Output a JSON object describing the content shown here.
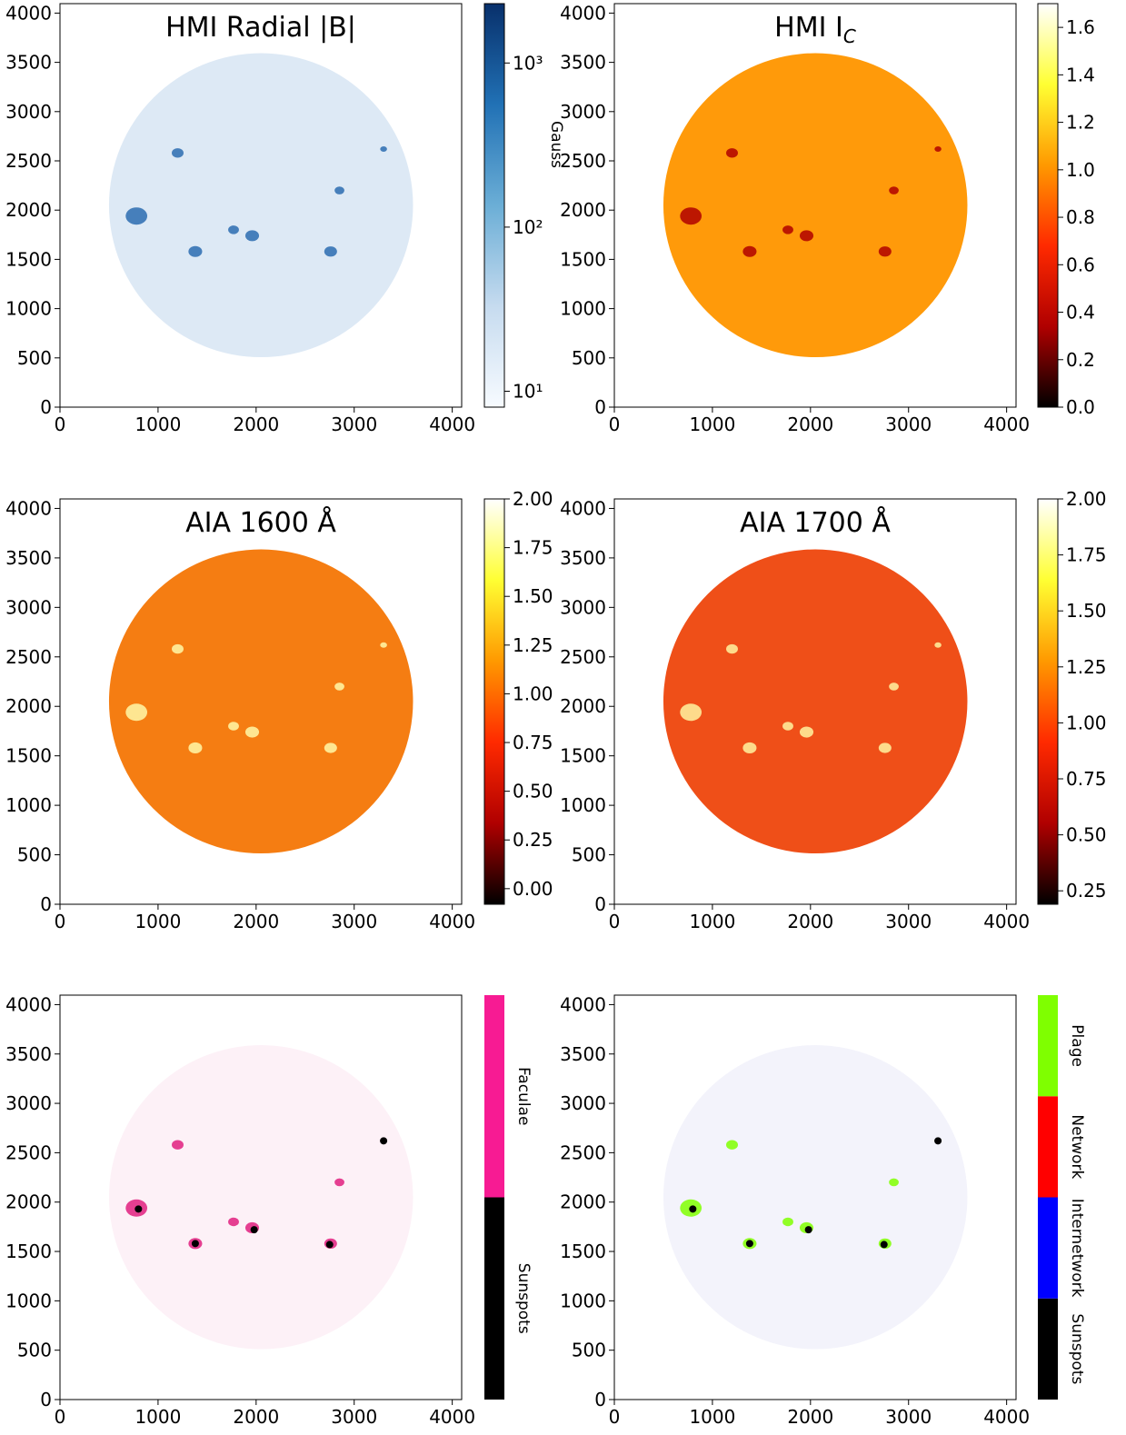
{
  "chart_data": [
    {
      "type": "image",
      "title": "HMI Radial |B|",
      "color": "#dde9f5",
      "xlim": [
        0,
        4096
      ],
      "ylim": [
        0,
        4096
      ],
      "xticks": [
        0,
        1000,
        2000,
        3000,
        4000
      ],
      "yticks": [
        0,
        500,
        1000,
        1500,
        2000,
        2500,
        3000,
        3500,
        4000
      ],
      "colorbar": {
        "label": "Gauss",
        "colormap": "Blues",
        "log": true,
        "lim": [
          8,
          2300
        ],
        "ticks": [
          {
            "value": 10,
            "label": "10¹"
          },
          {
            "value": 100,
            "label": "10²"
          },
          {
            "value": 1000,
            "label": "10³"
          }
        ]
      }
    },
    {
      "type": "image",
      "title": "HMI I",
      "title_subscript": "C",
      "color": "#ff9a0a",
      "xlim": [
        0,
        4096
      ],
      "ylim": [
        0,
        4096
      ],
      "xticks": [
        0,
        1000,
        2000,
        3000,
        4000
      ],
      "yticks": [
        0,
        500,
        1000,
        1500,
        2000,
        2500,
        3000,
        3500,
        4000
      ],
      "colorbar": {
        "colormap": "hot",
        "log": false,
        "lim": [
          0,
          1.7
        ],
        "ticks": [
          {
            "value": 0,
            "label": "0.0"
          },
          0.2,
          0.4,
          0.6,
          0.8,
          {
            "value": 1,
            "label": "1.0"
          },
          1.2,
          1.4,
          1.6
        ]
      }
    },
    {
      "type": "image",
      "title": "AIA 1600 Å",
      "color": "#f57d12",
      "xlim": [
        0,
        4096
      ],
      "ylim": [
        0,
        4096
      ],
      "xticks": [
        0,
        1000,
        2000,
        3000,
        4000
      ],
      "yticks": [
        0,
        500,
        1000,
        1500,
        2000,
        2500,
        3000,
        3500,
        4000
      ],
      "colorbar": {
        "colormap": "hot",
        "log": false,
        "lim": [
          -0.08,
          2.0
        ],
        "ticks": [
          {
            "value": 0,
            "label": "0.00"
          },
          {
            "value": 0.25,
            "label": "0.25"
          },
          {
            "value": 0.5,
            "label": "0.50"
          },
          {
            "value": 0.75,
            "label": "0.75"
          },
          {
            "value": 1,
            "label": "1.00"
          },
          {
            "value": 1.25,
            "label": "1.25"
          },
          {
            "value": 1.5,
            "label": "1.50"
          },
          {
            "value": 1.75,
            "label": "1.75"
          },
          {
            "value": 2,
            "label": "2.00"
          }
        ]
      }
    },
    {
      "type": "image",
      "title": "AIA 1700 Å",
      "color": "#ef4f18",
      "xlim": [
        0,
        4096
      ],
      "ylim": [
        0,
        4096
      ],
      "xticks": [
        0,
        1000,
        2000,
        3000,
        4000
      ],
      "yticks": [
        0,
        500,
        1000,
        1500,
        2000,
        2500,
        3000,
        3500,
        4000
      ],
      "colorbar": {
        "colormap": "hot",
        "log": false,
        "lim": [
          0.19,
          2.0
        ],
        "ticks": [
          {
            "value": 0.25,
            "label": "0.25"
          },
          {
            "value": 0.5,
            "label": "0.50"
          },
          {
            "value": 0.75,
            "label": "0.75"
          },
          {
            "value": 1,
            "label": "1.00"
          },
          {
            "value": 1.25,
            "label": "1.25"
          },
          {
            "value": 1.5,
            "label": "1.50"
          },
          {
            "value": 1.75,
            "label": "1.75"
          },
          {
            "value": 2,
            "label": "2.00"
          }
        ]
      }
    },
    {
      "type": "image",
      "color": "#fdf1f7",
      "xlim": [
        0,
        4096
      ],
      "ylim": [
        0,
        4096
      ],
      "xticks": [
        0,
        1000,
        2000,
        3000,
        4000
      ],
      "yticks": [
        0,
        500,
        1000,
        1500,
        2000,
        2500,
        3000,
        3500,
        4000
      ],
      "colorbar": {
        "categories": [
          "Sunspots",
          "Faculae"
        ],
        "colors": [
          "#000000",
          "#f71b93"
        ]
      }
    },
    {
      "type": "image",
      "color": "#f3f3fb",
      "xlim": [
        0,
        4096
      ],
      "ylim": [
        0,
        4096
      ],
      "xticks": [
        0,
        1000,
        2000,
        3000,
        4000
      ],
      "yticks": [
        0,
        500,
        1000,
        1500,
        2000,
        2500,
        3000,
        3500,
        4000
      ],
      "colorbar": {
        "categories": [
          "Sunspots",
          "Internetwork",
          "Network",
          "Plage"
        ],
        "colors": [
          "#000000",
          "#0000ff",
          "#ff0000",
          "#7fff00"
        ]
      }
    }
  ]
}
